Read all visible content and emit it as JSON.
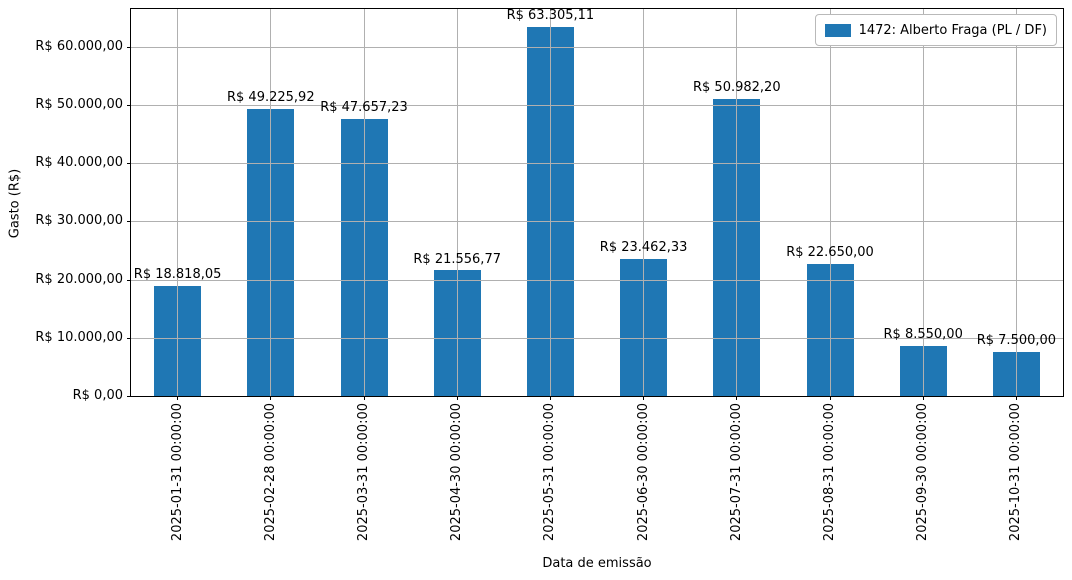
{
  "chart_data": {
    "type": "bar",
    "title": "",
    "xlabel": "Data de emissão",
    "ylabel": "Gasto (R$)",
    "categories": [
      "2025-01-31 00:00:00",
      "2025-02-28 00:00:00",
      "2025-03-31 00:00:00",
      "2025-04-30 00:00:00",
      "2025-05-31 00:00:00",
      "2025-06-30 00:00:00",
      "2025-07-31 00:00:00",
      "2025-08-31 00:00:00",
      "2025-09-30 00:00:00",
      "2025-10-31 00:00:00"
    ],
    "values": [
      18818.05,
      49225.92,
      47657.23,
      21556.77,
      63305.11,
      23462.33,
      50982.2,
      22650.0,
      8550.0,
      7500.0
    ],
    "bar_labels": [
      "R$ 18.818,05",
      "R$ 49.225,92",
      "R$ 47.657,23",
      "R$ 21.556,77",
      "R$ 63.305,11",
      "R$ 23.462,33",
      "R$ 50.982,20",
      "R$ 22.650,00",
      "R$ 8.550,00",
      "R$ 7.500,00"
    ],
    "yticks": {
      "values": [
        0,
        10000,
        20000,
        30000,
        40000,
        50000,
        60000
      ],
      "labels": [
        "R$ 0,00",
        "R$ 10.000,00",
        "R$ 20.000,00",
        "R$ 30.000,00",
        "R$ 40.000,00",
        "R$ 50.000,00",
        "R$ 60.000,00"
      ]
    },
    "ylim": [
      0,
      66470
    ],
    "grid": true,
    "legend": {
      "position": "upper right",
      "label": "1472: Alberto Fraga (PL / DF)"
    },
    "colors": {
      "bar": "#1f77b4",
      "grid": "#b0b0b0",
      "spine": "#000000",
      "legend_border": "#b9b9b9"
    }
  }
}
